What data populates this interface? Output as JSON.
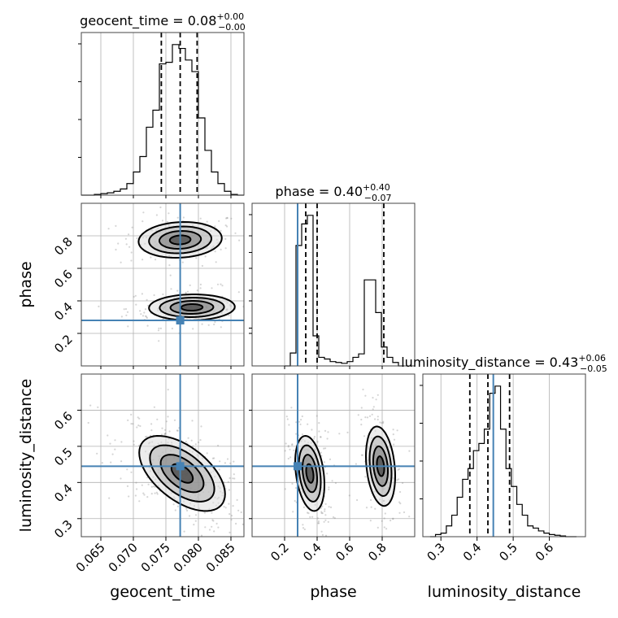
{
  "chart_data": {
    "type": "corner",
    "parameters": [
      {
        "name": "geocent_time",
        "label": "geocent_time",
        "range": [
          0.062,
          0.087
        ],
        "ticks": [
          0.065,
          0.07,
          0.075,
          0.08,
          0.085
        ],
        "tick_labels": [
          "0.065",
          "0.070",
          "0.075",
          "0.080",
          "0.085"
        ],
        "truth": 0.0772,
        "quantiles": [
          0.0743,
          0.0772,
          0.0798
        ],
        "title": {
          "main": "geocent_time = 0.08",
          "sup": "+0.00",
          "sub": "−0.00"
        },
        "hist_edges": [
          0.062,
          0.063,
          0.064,
          0.065,
          0.066,
          0.067,
          0.068,
          0.069,
          0.07,
          0.071,
          0.072,
          0.073,
          0.074,
          0.075,
          0.076,
          0.077,
          0.078,
          0.079,
          0.08,
          0.081,
          0.082,
          0.083,
          0.084,
          0.085,
          0.086,
          0.087
        ],
        "hist_counts": [
          0,
          0,
          1,
          2,
          3,
          5,
          8,
          15,
          30,
          50,
          88,
          110,
          170,
          172,
          195,
          190,
          175,
          160,
          100,
          58,
          30,
          15,
          5,
          1,
          0
        ]
      },
      {
        "name": "phase",
        "label": "phase",
        "range": [
          0.0,
          1.0
        ],
        "ticks": [
          0.2,
          0.4,
          0.6,
          0.8
        ],
        "tick_labels": [
          "0.2",
          "0.4",
          "0.6",
          "0.8"
        ],
        "truth": 0.28,
        "quantiles": [
          0.33,
          0.4,
          0.81
        ],
        "title": {
          "main": "phase = 0.40",
          "sup": "+0.40",
          "sub": "−0.07"
        },
        "hist_edges": [
          0.2,
          0.235,
          0.27,
          0.305,
          0.34,
          0.375,
          0.41,
          0.445,
          0.48,
          0.515,
          0.55,
          0.585,
          0.62,
          0.655,
          0.69,
          0.725,
          0.76,
          0.795,
          0.83,
          0.865,
          0.9,
          0.935
        ],
        "hist_counts": [
          0,
          15,
          140,
          165,
          175,
          35,
          10,
          8,
          5,
          4,
          3,
          5,
          10,
          14,
          100,
          100,
          62,
          22,
          10,
          4,
          0
        ]
      },
      {
        "name": "luminosity_distance",
        "label": "luminosity_distance",
        "range": [
          0.25,
          0.7
        ],
        "ticks": [
          0.3,
          0.4,
          0.5,
          0.6
        ],
        "tick_labels": [
          "0.3",
          "0.4",
          "0.5",
          "0.6"
        ],
        "truth": 0.445,
        "quantiles": [
          0.38,
          0.43,
          0.49
        ],
        "title": {
          "main": "luminosity_distance = 0.43",
          "sup": "+0.06",
          "sub": "−0.05"
        },
        "hist_edges": [
          0.27,
          0.285,
          0.3,
          0.315,
          0.33,
          0.345,
          0.36,
          0.375,
          0.39,
          0.405,
          0.42,
          0.435,
          0.45,
          0.465,
          0.48,
          0.495,
          0.51,
          0.525,
          0.54,
          0.555,
          0.57,
          0.585,
          0.6,
          0.615,
          0.63,
          0.645,
          0.66,
          0.675
        ],
        "hist_counts": [
          0,
          3,
          5,
          15,
          30,
          55,
          80,
          95,
          120,
          130,
          150,
          200,
          210,
          150,
          95,
          70,
          45,
          30,
          15,
          12,
          8,
          5,
          3,
          2,
          1,
          0,
          0
        ]
      }
    ],
    "pairs": [
      {
        "x": "geocent_time",
        "y": "phase",
        "modes": [
          {
            "cx": 0.0772,
            "cy": 0.775,
            "sx": 0.0032,
            "sy": 0.055,
            "rho": 0.1,
            "n": 140
          },
          {
            "cx": 0.079,
            "cy": 0.36,
            "sx": 0.0033,
            "sy": 0.04,
            "rho": 0.05,
            "n": 220
          }
        ]
      },
      {
        "x": "geocent_time",
        "y": "luminosity_distance",
        "modes": [
          {
            "cx": 0.0775,
            "cy": 0.425,
            "sx": 0.0033,
            "sy": 0.052,
            "rho": -0.55,
            "n": 380
          }
        ]
      },
      {
        "x": "phase",
        "y": "luminosity_distance",
        "modes": [
          {
            "cx": 0.355,
            "cy": 0.425,
            "sx": 0.045,
            "sy": 0.052,
            "rho": -0.3,
            "n": 220
          },
          {
            "cx": 0.79,
            "cy": 0.445,
            "sx": 0.045,
            "sy": 0.055,
            "rho": -0.25,
            "n": 180
          }
        ]
      }
    ],
    "levels_sigma": [
      0.5,
      1.0,
      1.5,
      2.0
    ],
    "grid": true,
    "colors": {
      "truth": "#4682b4",
      "lines": "#000000",
      "points": "#888888"
    }
  }
}
